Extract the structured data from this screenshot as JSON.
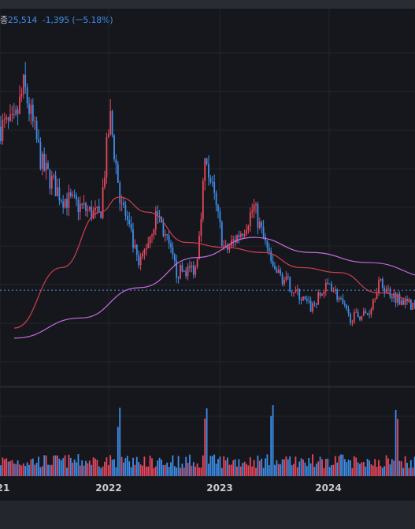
{
  "quote": {
    "name": "종",
    "price": "25,514",
    "change": "-1,395",
    "change_pct": "(ㅡ5.18%)"
  },
  "colors": {
    "background": "#16171c",
    "grid": "#24262c",
    "up": "#e8475d",
    "down": "#3d8ee8",
    "ma_short": "#cf3e4e",
    "ma_long": "#c66be0",
    "price_line": "#5a8fd6"
  },
  "chart_data": {
    "type": "candlestick",
    "title": "",
    "x_tick_labels": [
      "21",
      "2022",
      "2023",
      "2024"
    ],
    "last_price": 25514,
    "change": -1395,
    "change_pct": -5.18,
    "price_series_approx": [
      {
        "date": "2021-01",
        "close": 58000
      },
      {
        "date": "2021-02",
        "close": 66000
      },
      {
        "date": "2021-04",
        "close": 50000
      },
      {
        "date": "2021-06",
        "close": 44000
      },
      {
        "date": "2021-08",
        "close": 42000
      },
      {
        "date": "2021-10",
        "close": 40000
      },
      {
        "date": "2021-11",
        "close": 60000
      },
      {
        "date": "2021-12",
        "close": 45000
      },
      {
        "date": "2022-02",
        "close": 30000
      },
      {
        "date": "2022-04",
        "close": 41000
      },
      {
        "date": "2022-06",
        "close": 29000
      },
      {
        "date": "2022-08",
        "close": 30000
      },
      {
        "date": "2022-09",
        "close": 52000
      },
      {
        "date": "2022-11",
        "close": 33000
      },
      {
        "date": "2023-01",
        "close": 38000
      },
      {
        "date": "2023-02",
        "close": 42000
      },
      {
        "date": "2023-04",
        "close": 30000
      },
      {
        "date": "2023-06",
        "close": 26000
      },
      {
        "date": "2023-08",
        "close": 22000
      },
      {
        "date": "2023-10",
        "close": 27000
      },
      {
        "date": "2023-12",
        "close": 20000
      },
      {
        "date": "2024-02",
        "close": 21000
      },
      {
        "date": "2024-03",
        "close": 27000
      },
      {
        "date": "2024-05",
        "close": 24000
      },
      {
        "date": "2024-07",
        "close": 22000
      },
      {
        "date": "2024-09",
        "close": 25514
      }
    ],
    "moving_average_short_approx": [
      {
        "date": "2021-01",
        "value": 18000
      },
      {
        "date": "2021-06",
        "value": 30000
      },
      {
        "date": "2021-10",
        "value": 41000
      },
      {
        "date": "2021-12",
        "value": 44000
      },
      {
        "date": "2022-03",
        "value": 41000
      },
      {
        "date": "2022-07",
        "value": 35000
      },
      {
        "date": "2022-11",
        "value": 34000
      },
      {
        "date": "2023-03",
        "value": 33000
      },
      {
        "date": "2023-07",
        "value": 30000
      },
      {
        "date": "2023-11",
        "value": 29000
      },
      {
        "date": "2024-03",
        "value": 25000
      },
      {
        "date": "2024-09",
        "value": 22000
      }
    ],
    "moving_average_long_approx": [
      {
        "date": "2021-01",
        "value": 16000
      },
      {
        "date": "2021-08",
        "value": 20000
      },
      {
        "date": "2022-02",
        "value": 26000
      },
      {
        "date": "2022-08",
        "value": 32000
      },
      {
        "date": "2023-02",
        "value": 36000
      },
      {
        "date": "2023-08",
        "value": 33000
      },
      {
        "date": "2024-02",
        "value": 31000
      },
      {
        "date": "2024-09",
        "value": 28000
      }
    ],
    "volume_spikes": [
      "2021-12",
      "2022-09",
      "2023-04",
      "2024-05",
      "2024-07"
    ],
    "grid": true
  }
}
